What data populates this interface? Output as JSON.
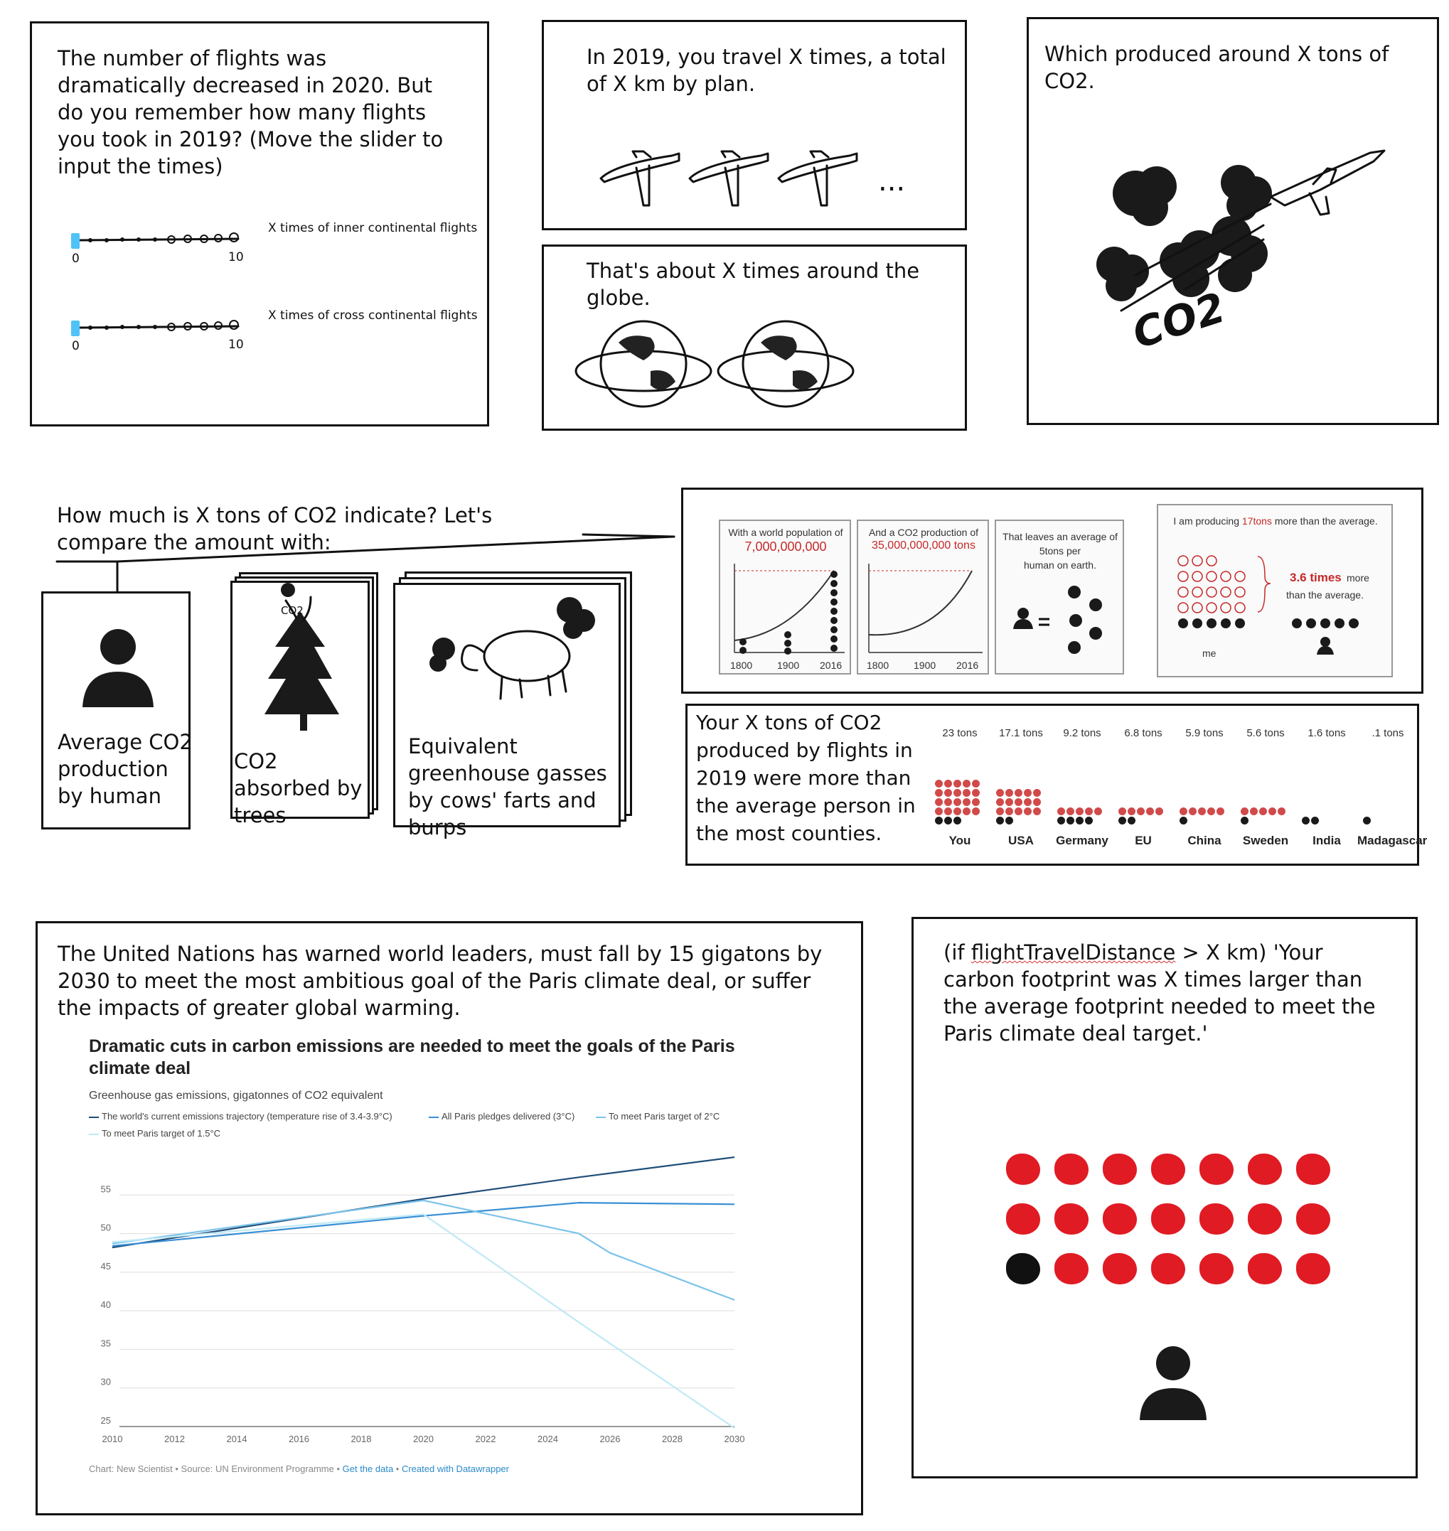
{
  "panel1": {
    "text": "The number of flights was dramatically decreased in 2020. But do you remember how many flights you took in 2019? (Move the slider to input the times)",
    "slider1": {
      "label": "X times of inner continental flights",
      "min": "0",
      "max": "10",
      "value": 0
    },
    "slider2": {
      "label": "X times of cross continental flights",
      "min": "0",
      "max": "10",
      "value": 0
    }
  },
  "panel2": {
    "text": "In 2019, you travel X times, a total of X km by plan.",
    "ellipsis": "..."
  },
  "panel3": {
    "text": "That's about X times around  the globe."
  },
  "panel4": {
    "text": "Which produced around X tons of CO2.",
    "co2_label": "CO2"
  },
  "compare": {
    "intro": "How much is X tons of CO2 indicate? Let's compare the amount with:",
    "card1": "Average CO2 production by human",
    "card2": "CO2 absorbed by trees",
    "card2_cloud_label": "CO2",
    "card3": "Equivalent greenhouse gasses by cows' farts and burps"
  },
  "infographic": {
    "p1_title": "With a world population of",
    "p1_value": "7,000,000,000",
    "p1_years": [
      "1800",
      "1900",
      "2016"
    ],
    "p2_title": "And a CO2 production of",
    "p2_value": "35,000,000,000 tons",
    "p2_years": [
      "1800",
      "1900",
      "2016"
    ],
    "p3_line1": "That leaves an average of",
    "p3_line2": "5tons per",
    "p3_line3": "human on earth.",
    "p4_title_a": "I am producing",
    "p4_title_b": "17tons",
    "p4_title_c": "more than the average.",
    "p4_times": "3.6 times",
    "p4_more": "more",
    "p4_avg": "than the average.",
    "p4_me": "me"
  },
  "countries": {
    "text": "Your X tons of CO2 produced by flights in 2019 were more than the average person in the most counties.",
    "items": [
      {
        "name": "You",
        "tons": "23 tons",
        "value": 23
      },
      {
        "name": "USA",
        "tons": "17.1 tons",
        "value": 17.1
      },
      {
        "name": "Germany",
        "tons": "9.2 tons",
        "value": 9.2
      },
      {
        "name": "EU",
        "tons": "6.8 tons",
        "value": 6.8
      },
      {
        "name": "China",
        "tons": "5.9 tons",
        "value": 5.9
      },
      {
        "name": "Sweden",
        "tons": "5.6 tons",
        "value": 5.6
      },
      {
        "name": "India",
        "tons": "1.6 tons",
        "value": 1.6
      },
      {
        "name": "Madagascar",
        "tons": ".1 tons",
        "value": 0.1
      }
    ]
  },
  "un": {
    "text": "The United Nations has warned world leaders, must fall by 15 gigatons by 2030 to meet the most ambitious goal of the Paris climate deal,   or suffer the impacts of greater global warming."
  },
  "chart_data": {
    "type": "line",
    "title": "Dramatic cuts in carbon emissions are needed to meet the goals of the Paris climate deal",
    "subtitle": "Greenhouse gas emissions, gigatonnes of CO2 equivalent",
    "x_ticks": [
      "2010",
      "2012",
      "2014",
      "2016",
      "2018",
      "2020",
      "2022",
      "2024",
      "2026",
      "2028",
      "2030"
    ],
    "y_ticks": [
      "25",
      "30",
      "35",
      "40",
      "45",
      "50",
      "55"
    ],
    "xlim": [
      2010,
      2030
    ],
    "ylim": [
      25,
      60
    ],
    "grid": true,
    "legend": "top",
    "series": [
      {
        "name": "The world's current emissions trajectory (temperature rise of 3.4-3.9°C)",
        "color": "#1f4e79",
        "x": [
          2010,
          2020,
          2025,
          2030
        ],
        "y": [
          48.2,
          54.5,
          57.3,
          59.9
        ]
      },
      {
        "name": "All Paris pledges delivered (3°C)",
        "color": "#3a8fd6",
        "x": [
          2010,
          2020,
          2025,
          2030
        ],
        "y": [
          48.4,
          52.3,
          54.0,
          53.8
        ]
      },
      {
        "name": "To meet Paris target of 2°C",
        "color": "#7cc3ea",
        "x": [
          2010,
          2020,
          2025,
          2026,
          2030
        ],
        "y": [
          48.7,
          54.3,
          50.0,
          47.5,
          41.4
        ]
      },
      {
        "name": "To meet Paris target of 1.5°C",
        "color": "#bfe9f6",
        "x": [
          2010,
          2020,
          2025,
          2030
        ],
        "y": [
          48.9,
          52.5,
          38.5,
          24.8
        ]
      }
    ],
    "footer_source": "Chart: New Scientist • Source: UN Environment Programme • ",
    "footer_link1": "Get the data",
    "footer_sep": " • ",
    "footer_link2": "Created with Datawrapper"
  },
  "footprint": {
    "prefix": "(if ",
    "variable": "flightTravelDistance",
    "text": " > X km) 'Your carbon footprint was X times larger than the average footprint needed to meet the Paris climate deal target.'",
    "red_count": 20,
    "black_count": 1,
    "colors": {
      "red": "#e01b24",
      "black": "#111111"
    }
  }
}
